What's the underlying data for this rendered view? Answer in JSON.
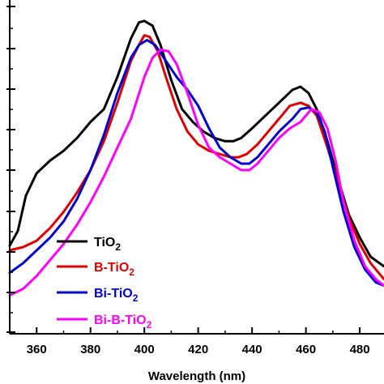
{
  "chart_data": {
    "type": "line",
    "title": "",
    "xlabel": "Wavelength (nm)",
    "ylabel": "",
    "xlim": [
      350,
      489
    ],
    "ylim": [
      0,
      1.04
    ],
    "x_ticks": [
      360,
      380,
      400,
      420,
      440,
      460,
      480
    ],
    "legend_position": "bottom-left",
    "grid": false,
    "series": [
      {
        "name": "TiO",
        "subscript": "2",
        "color": "#000000",
        "points": [
          [
            350,
            0.275
          ],
          [
            353,
            0.32
          ],
          [
            356,
            0.43
          ],
          [
            360,
            0.5
          ],
          [
            365,
            0.54
          ],
          [
            370,
            0.57
          ],
          [
            375,
            0.61
          ],
          [
            380,
            0.66
          ],
          [
            385,
            0.7
          ],
          [
            390,
            0.8
          ],
          [
            395,
            0.92
          ],
          [
            398,
            0.97
          ],
          [
            400,
            0.975
          ],
          [
            403,
            0.96
          ],
          [
            406,
            0.9
          ],
          [
            410,
            0.79
          ],
          [
            414,
            0.7
          ],
          [
            418,
            0.66
          ],
          [
            422,
            0.63
          ],
          [
            426,
            0.61
          ],
          [
            430,
            0.6
          ],
          [
            433,
            0.6
          ],
          [
            436,
            0.61
          ],
          [
            440,
            0.64
          ],
          [
            445,
            0.68
          ],
          [
            450,
            0.72
          ],
          [
            455,
            0.76
          ],
          [
            458,
            0.77
          ],
          [
            461,
            0.75
          ],
          [
            464,
            0.7
          ],
          [
            468,
            0.6
          ],
          [
            472,
            0.48
          ],
          [
            476,
            0.37
          ],
          [
            480,
            0.3
          ],
          [
            484,
            0.24
          ],
          [
            489,
            0.21
          ]
        ]
      },
      {
        "name": "B-TiO",
        "subscript": "2",
        "color": "#e00000",
        "points": [
          [
            350,
            0.26
          ],
          [
            355,
            0.27
          ],
          [
            360,
            0.29
          ],
          [
            365,
            0.33
          ],
          [
            370,
            0.38
          ],
          [
            375,
            0.44
          ],
          [
            380,
            0.51
          ],
          [
            385,
            0.6
          ],
          [
            390,
            0.72
          ],
          [
            395,
            0.85
          ],
          [
            398,
            0.9
          ],
          [
            400,
            0.93
          ],
          [
            402,
            0.925
          ],
          [
            405,
            0.88
          ],
          [
            408,
            0.8
          ],
          [
            412,
            0.7
          ],
          [
            416,
            0.63
          ],
          [
            420,
            0.59
          ],
          [
            424,
            0.57
          ],
          [
            428,
            0.56
          ],
          [
            432,
            0.55
          ],
          [
            435,
            0.55
          ],
          [
            438,
            0.56
          ],
          [
            442,
            0.59
          ],
          [
            446,
            0.63
          ],
          [
            450,
            0.67
          ],
          [
            454,
            0.71
          ],
          [
            458,
            0.72
          ],
          [
            461,
            0.71
          ],
          [
            464,
            0.68
          ],
          [
            468,
            0.58
          ],
          [
            472,
            0.47
          ],
          [
            476,
            0.36
          ],
          [
            480,
            0.28
          ],
          [
            484,
            0.22
          ],
          [
            489,
            0.17
          ]
        ]
      },
      {
        "name": "Bi-TiO",
        "subscript": "2",
        "color": "#0000d0",
        "points": [
          [
            350,
            0.19
          ],
          [
            355,
            0.22
          ],
          [
            360,
            0.26
          ],
          [
            365,
            0.3
          ],
          [
            370,
            0.35
          ],
          [
            375,
            0.42
          ],
          [
            380,
            0.51
          ],
          [
            385,
            0.62
          ],
          [
            390,
            0.75
          ],
          [
            395,
            0.86
          ],
          [
            398,
            0.9
          ],
          [
            401,
            0.915
          ],
          [
            404,
            0.9
          ],
          [
            408,
            0.85
          ],
          [
            412,
            0.8
          ],
          [
            416,
            0.76
          ],
          [
            420,
            0.71
          ],
          [
            424,
            0.64
          ],
          [
            428,
            0.58
          ],
          [
            432,
            0.55
          ],
          [
            436,
            0.53
          ],
          [
            439,
            0.53
          ],
          [
            442,
            0.55
          ],
          [
            446,
            0.59
          ],
          [
            450,
            0.63
          ],
          [
            455,
            0.67
          ],
          [
            458,
            0.7
          ],
          [
            461,
            0.705
          ],
          [
            464,
            0.69
          ],
          [
            467,
            0.63
          ],
          [
            470,
            0.52
          ],
          [
            474,
            0.38
          ],
          [
            478,
            0.27
          ],
          [
            482,
            0.2
          ],
          [
            486,
            0.16
          ],
          [
            489,
            0.15
          ]
        ]
      },
      {
        "name": "Bi-B-TiO",
        "subscript": "2",
        "color": "#ff00ff",
        "points": [
          [
            350,
            0.12
          ],
          [
            355,
            0.14
          ],
          [
            360,
            0.18
          ],
          [
            365,
            0.23
          ],
          [
            370,
            0.28
          ],
          [
            375,
            0.34
          ],
          [
            380,
            0.41
          ],
          [
            385,
            0.49
          ],
          [
            390,
            0.58
          ],
          [
            395,
            0.67
          ],
          [
            400,
            0.8
          ],
          [
            403,
            0.86
          ],
          [
            406,
            0.885
          ],
          [
            409,
            0.88
          ],
          [
            412,
            0.84
          ],
          [
            416,
            0.75
          ],
          [
            420,
            0.65
          ],
          [
            424,
            0.58
          ],
          [
            428,
            0.55
          ],
          [
            432,
            0.53
          ],
          [
            436,
            0.51
          ],
          [
            439,
            0.51
          ],
          [
            442,
            0.53
          ],
          [
            446,
            0.57
          ],
          [
            450,
            0.61
          ],
          [
            454,
            0.64
          ],
          [
            458,
            0.66
          ],
          [
            462,
            0.7
          ],
          [
            465,
            0.69
          ],
          [
            468,
            0.64
          ],
          [
            471,
            0.54
          ],
          [
            474,
            0.41
          ],
          [
            478,
            0.29
          ],
          [
            482,
            0.21
          ],
          [
            486,
            0.17
          ],
          [
            489,
            0.15
          ]
        ]
      }
    ]
  }
}
